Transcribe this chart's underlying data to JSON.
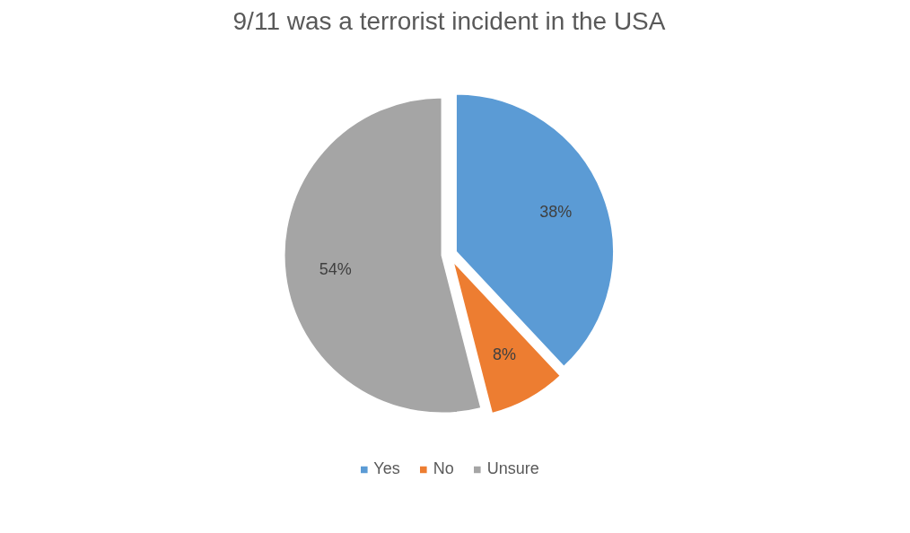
{
  "chart_data": {
    "type": "pie",
    "title": "9/11 was a terrorist incident in the USA",
    "categories": [
      "Yes",
      "No",
      "Unsure"
    ],
    "values": [
      38,
      8,
      54
    ],
    "colors": [
      "#5b9bd5",
      "#ed7d31",
      "#a5a5a5"
    ],
    "value_labels": [
      "38%",
      "8%",
      "54%"
    ],
    "legend": "bottom"
  }
}
